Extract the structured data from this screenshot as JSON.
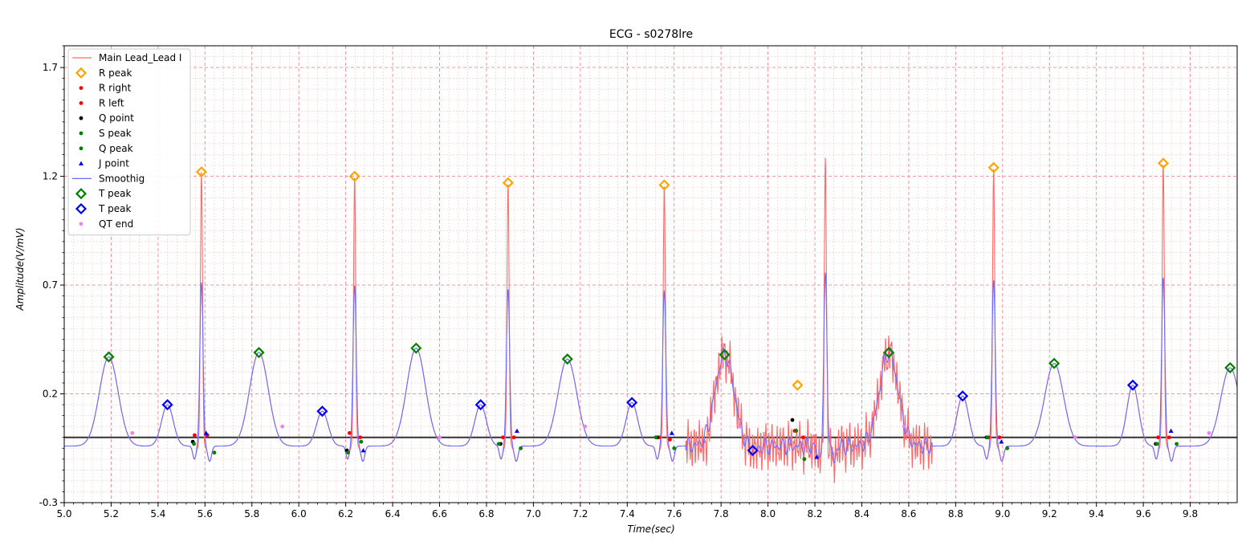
{
  "chart_data": {
    "type": "line",
    "title": "ECG - s0278lre",
    "xlabel": "Time(sec)",
    "ylabel": "Amplitude(V/mV)",
    "xlim": [
      5.0,
      10.0
    ],
    "ylim": [
      -0.3,
      1.8
    ],
    "x_ticks": [
      5.0,
      5.2,
      5.4,
      5.6,
      5.8,
      6.0,
      6.2,
      6.4,
      6.6,
      6.8,
      7.0,
      7.2,
      7.4,
      7.6,
      7.8,
      8.0,
      8.2,
      8.4,
      8.6,
      8.8,
      9.0,
      9.2,
      9.4,
      9.6,
      9.8
    ],
    "x_tick_labels": [
      "5.0",
      "5.2",
      "5.4",
      "5.6",
      "5.8",
      "6.0",
      "6.2",
      "6.4",
      "6.6",
      "6.8",
      "7.0",
      "7.2",
      "7.4",
      "7.6",
      "7.8",
      "8.0",
      "8.2",
      "8.4",
      "8.6",
      "8.8",
      "9.0",
      "9.2",
      "9.4",
      "9.6",
      "9.8"
    ],
    "y_ticks": [
      -0.3,
      0.2,
      0.7,
      1.2,
      1.7
    ],
    "y_tick_labels": [
      "-0.3",
      "0.2",
      "0.7",
      "1.2",
      "1.7"
    ],
    "grid": true,
    "baseline": 0.0,
    "legend_position": "top-left",
    "beat_times": [
      5.585,
      6.238,
      6.892,
      7.558,
      8.245,
      8.962,
      9.685
    ],
    "series": [
      {
        "name": "Main Lead_Lead I",
        "kind": "line",
        "color": "#ff6b6b",
        "r_amplitudes": [
          1.22,
          1.2,
          1.17,
          1.16,
          1.25,
          1.24,
          1.26
        ]
      },
      {
        "name": "R peak",
        "kind": "diamond-open",
        "color": "#ffa500",
        "points": [
          [
            5.585,
            1.22
          ],
          [
            6.238,
            1.2
          ],
          [
            6.892,
            1.17
          ],
          [
            7.558,
            1.16
          ],
          [
            8.126,
            0.24
          ],
          [
            8.962,
            1.24
          ],
          [
            9.685,
            1.26
          ]
        ]
      },
      {
        "name": "R right",
        "kind": "dot",
        "color": "#ff0000",
        "points": [
          [
            5.61,
            0.01
          ],
          [
            6.262,
            0.0
          ],
          [
            6.917,
            0.0
          ],
          [
            7.582,
            -0.01
          ],
          [
            8.15,
            0.0
          ],
          [
            8.987,
            0.0
          ],
          [
            9.71,
            0.0
          ]
        ]
      },
      {
        "name": "R left",
        "kind": "dot",
        "color": "#ff0000",
        "points": [
          [
            5.556,
            0.01
          ],
          [
            6.216,
            0.02
          ],
          [
            6.87,
            0.0
          ],
          [
            7.536,
            0.0
          ],
          [
            8.114,
            0.03
          ],
          [
            8.94,
            0.0
          ],
          [
            9.663,
            0.0
          ]
        ]
      },
      {
        "name": "Q point",
        "kind": "dot",
        "color": "#000000",
        "points": [
          [
            5.548,
            -0.02
          ],
          [
            6.205,
            -0.06
          ],
          [
            6.86,
            -0.03
          ],
          [
            7.527,
            0.0
          ],
          [
            8.104,
            0.08
          ],
          [
            8.932,
            0.0
          ],
          [
            9.653,
            -0.03
          ]
        ]
      },
      {
        "name": "S peak",
        "kind": "dot",
        "color": "#008000",
        "points": [
          [
            5.64,
            -0.07
          ],
          [
            6.266,
            -0.02
          ],
          [
            6.946,
            -0.05
          ],
          [
            7.6,
            -0.05
          ],
          [
            8.155,
            -0.1
          ],
          [
            9.02,
            -0.05
          ],
          [
            9.742,
            -0.03
          ]
        ]
      },
      {
        "name": "Q peak",
        "kind": "dot",
        "color": "#008000",
        "points": [
          [
            5.553,
            -0.03
          ],
          [
            6.21,
            -0.07
          ],
          [
            6.852,
            -0.03
          ],
          [
            7.522,
            0.0
          ],
          [
            8.12,
            0.03
          ],
          [
            8.935,
            0.0
          ],
          [
            9.658,
            -0.03
          ]
        ]
      },
      {
        "name": "J point",
        "kind": "triangle",
        "color": "#0000ff",
        "points": [
          [
            5.605,
            0.02
          ],
          [
            6.275,
            -0.06
          ],
          [
            6.93,
            0.03
          ],
          [
            7.59,
            0.02
          ],
          [
            8.208,
            -0.09
          ],
          [
            8.995,
            -0.02
          ],
          [
            9.718,
            0.03
          ]
        ]
      },
      {
        "name": "Smoothig",
        "kind": "line",
        "color": "#6b6bff"
      },
      {
        "name": "T peak",
        "kind": "diamond-open",
        "color": "#008000",
        "points": [
          [
            5.19,
            0.37
          ],
          [
            5.83,
            0.39
          ],
          [
            6.5,
            0.41
          ],
          [
            7.145,
            0.36
          ],
          [
            7.815,
            0.38
          ],
          [
            8.515,
            0.39
          ],
          [
            9.22,
            0.34
          ],
          [
            9.97,
            0.32
          ]
        ]
      },
      {
        "name": "T peak",
        "kind": "diamond-open",
        "color": "#0000ff",
        "points": [
          [
            5.44,
            0.15
          ],
          [
            6.1,
            0.12
          ],
          [
            6.775,
            0.15
          ],
          [
            7.42,
            0.16
          ],
          [
            7.935,
            -0.06
          ],
          [
            8.83,
            0.19
          ],
          [
            9.555,
            0.24
          ]
        ]
      },
      {
        "name": "QT end",
        "kind": "dot",
        "color": "#ee82ee",
        "points": [
          [
            5.29,
            0.02
          ],
          [
            5.93,
            0.05
          ],
          [
            6.6,
            0.0
          ],
          [
            7.22,
            0.05
          ],
          [
            7.88,
            0.05
          ],
          [
            8.58,
            0.05
          ],
          [
            9.31,
            0.0
          ],
          [
            9.88,
            0.02
          ]
        ]
      }
    ]
  }
}
